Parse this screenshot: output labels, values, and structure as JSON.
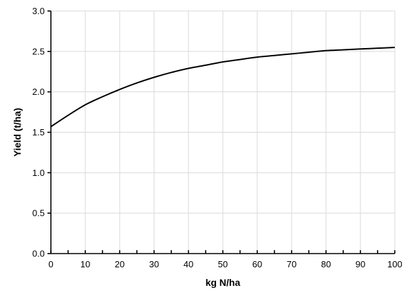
{
  "chart_data": {
    "type": "line",
    "title": "",
    "xlabel": "kg N/ha",
    "ylabel": "Yield (t/ha)",
    "xlim": [
      0,
      100
    ],
    "ylim": [
      0,
      3.0
    ],
    "x_ticks": [
      0,
      10,
      20,
      30,
      40,
      50,
      60,
      70,
      80,
      90,
      100
    ],
    "x_tick_labels": [
      "0",
      "10",
      "20",
      "30",
      "40",
      "50",
      "60",
      "70",
      "80",
      "90",
      "100"
    ],
    "y_ticks": [
      0,
      0.5,
      1.0,
      1.5,
      2.0,
      2.5,
      3.0
    ],
    "y_tick_labels": [
      "0.0",
      "0.5",
      "1.0",
      "1.5",
      "2.0",
      "2.5",
      "3.0"
    ],
    "grid": true,
    "legend": "none",
    "series": [
      {
        "color": "#000000",
        "x": [
          0,
          5,
          10,
          15,
          20,
          25,
          30,
          35,
          40,
          45,
          50,
          55,
          60,
          65,
          70,
          75,
          80,
          85,
          90,
          95,
          100
        ],
        "y": [
          1.57,
          1.71,
          1.84,
          1.94,
          2.03,
          2.11,
          2.18,
          2.24,
          2.29,
          2.33,
          2.37,
          2.4,
          2.43,
          2.45,
          2.47,
          2.49,
          2.51,
          2.52,
          2.53,
          2.54,
          2.55
        ]
      }
    ]
  }
}
